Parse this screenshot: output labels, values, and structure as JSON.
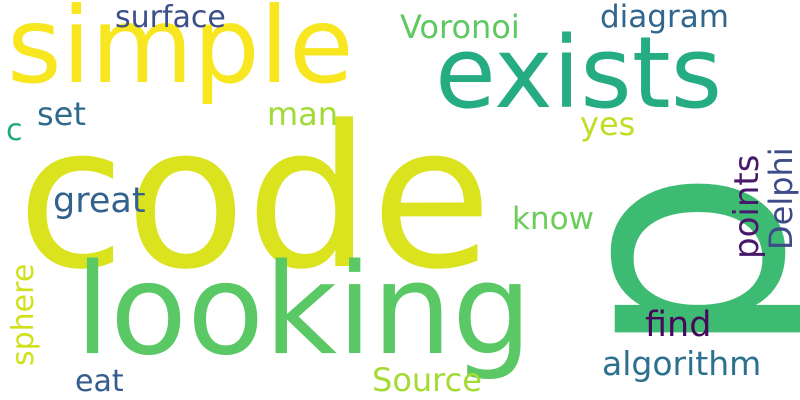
{
  "words": {
    "code": {
      "text": "code",
      "color": "#dae31e"
    },
    "p": {
      "text": "p",
      "color": "#3dbb73"
    },
    "simple": {
      "text": "simple",
      "color": "#f8e621"
    },
    "exists": {
      "text": "exists",
      "color": "#25ac82"
    },
    "looking": {
      "text": "looking",
      "color": "#5ac864"
    },
    "surface": {
      "text": "surface",
      "color": "#3b4f8a"
    },
    "voronoi": {
      "text": "Voronoi",
      "color": "#5ec962"
    },
    "diagram": {
      "text": "diagram",
      "color": "#31668e"
    },
    "set": {
      "text": "set",
      "color": "#2f6b8e"
    },
    "c": {
      "text": "c",
      "color": "#23a884"
    },
    "man": {
      "text": "man",
      "color": "#a2da37"
    },
    "yes": {
      "text": "yes",
      "color": "#bddf26"
    },
    "great": {
      "text": "great",
      "color": "#33628d"
    },
    "know": {
      "text": "know",
      "color": "#6ccd5a"
    },
    "points": {
      "text": "points",
      "color": "#48186a"
    },
    "delphi": {
      "text": "Delphi",
      "color": "#3e4a89"
    },
    "find": {
      "text": "find",
      "color": "#46085c"
    },
    "algorithm": {
      "text": "algorithm",
      "color": "#2c718e"
    },
    "sphere": {
      "text": "sphere",
      "color": "#d0e11c"
    },
    "eat": {
      "text": "eat",
      "color": "#365c8d"
    },
    "source": {
      "text": "Source",
      "color": "#a5db36"
    }
  }
}
